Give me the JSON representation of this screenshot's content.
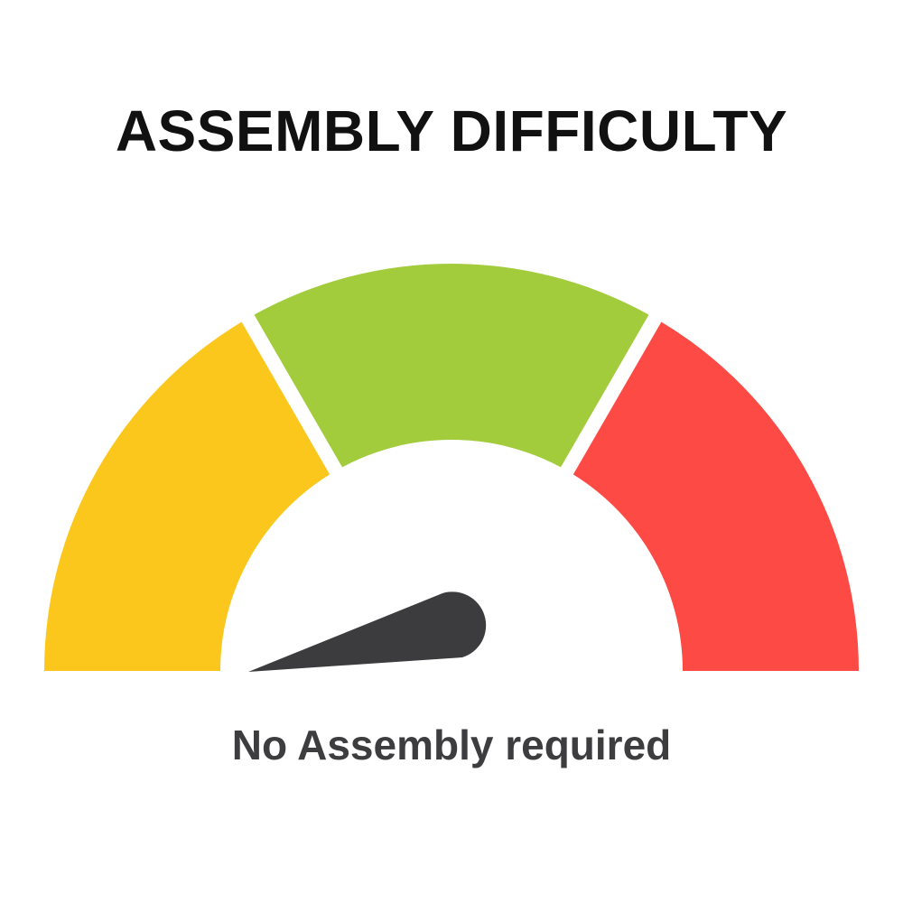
{
  "title": "ASSEMBLY DIFFICULTY",
  "caption": "No Assembly required",
  "gauge": {
    "segments": [
      {
        "level": "low",
        "color": "#FCC71C"
      },
      {
        "level": "medium",
        "color": "#A2CC3C"
      },
      {
        "level": "high",
        "color": "#FE4A44"
      }
    ],
    "needle_color": "#3C3C3E",
    "needle_level_percent": 0
  }
}
